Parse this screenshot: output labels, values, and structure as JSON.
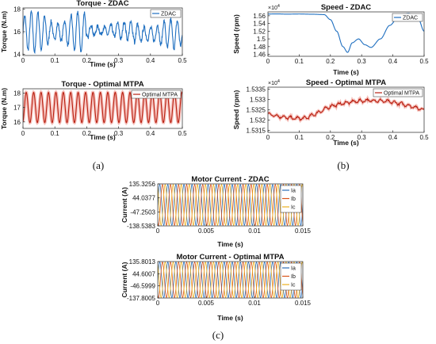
{
  "colors": {
    "blue": "#1f6fc0",
    "red": "#b81f10",
    "redband": "#f2a6a0",
    "ia": "#2c6fb8",
    "ib": "#d9541a",
    "ic": "#edb120"
  },
  "panels": {
    "a": "(a)",
    "b": "(b)",
    "c": "(c)"
  },
  "chart_data": [
    {
      "id": "torque_zdac",
      "type": "line",
      "title": "Torque - ZDAC",
      "xlabel": "Time (s)",
      "ylabel": "Torque (N.m)",
      "xlim": [
        0,
        0.5
      ],
      "ylim": [
        13.9,
        18.1
      ],
      "xticks": [
        "0",
        "0.1",
        "0.2",
        "0.3",
        "0.4",
        "0.5"
      ],
      "yticks": [
        "14",
        "16",
        "18"
      ],
      "legend": "top-right",
      "series": [
        {
          "name": "ZDAC",
          "color": "#1f6fc0"
        }
      ]
    },
    {
      "id": "torque_mtpa",
      "type": "line",
      "title": "Torque - Optimal MTPA",
      "xlabel": "Time (s)",
      "ylabel": "Torque (N.m)",
      "xlim": [
        0,
        0.5
      ],
      "ylim": [
        15.55,
        18.3
      ],
      "xticks": [
        "0",
        "0.1",
        "0.2",
        "0.3",
        "0.4",
        "0.5"
      ],
      "yticks": [
        "16",
        "17",
        "18"
      ],
      "legend": "top-right",
      "series": [
        {
          "name": "Optimal MTPA",
          "color": "#b81f10"
        }
      ]
    },
    {
      "id": "speed_zdac",
      "type": "line",
      "title": "Speed - ZDAC",
      "xlabel": "Time (s)",
      "ylabel": "Speed (rpm)",
      "exponent": "×10",
      "exponent_power": "4",
      "xlim": [
        0,
        0.5
      ],
      "ylim": [
        1.455,
        1.57
      ],
      "xticks": [
        "0",
        "0.1",
        "0.2",
        "0.3",
        "0.4",
        "0.5"
      ],
      "yticks": [
        "1.46",
        "1.48",
        "1.5",
        "1.52",
        "1.54",
        "1.56"
      ],
      "legend": "top-right",
      "series": [
        {
          "name": "ZDAC",
          "color": "#1f6fc0"
        }
      ]
    },
    {
      "id": "speed_mtpa",
      "type": "line",
      "title": "Speed - Optimal MTPA",
      "xlabel": "Time (s)",
      "ylabel": "Speed (rpm)",
      "exponent": "×10",
      "exponent_power": "4",
      "xlim": [
        0,
        0.5
      ],
      "ylim": [
        1.5314,
        1.5336
      ],
      "xticks": [
        "0",
        "0.1",
        "0.2",
        "0.3",
        "0.4",
        "0.5"
      ],
      "yticks": [
        "1.5315",
        "1.532",
        "1.5325",
        "1.533",
        "1.5335"
      ],
      "legend": "top-right",
      "series": [
        {
          "name": "Optimal MTPA",
          "color": "#b81f10"
        }
      ]
    },
    {
      "id": "current_zdac",
      "type": "line",
      "title": "Motor Current - ZDAC",
      "xlabel": "Time (s)",
      "ylabel": "Current (A)",
      "xlim": [
        0,
        0.015
      ],
      "ylim": [
        -138.5383,
        135.3256
      ],
      "xticks": [
        "0",
        "0.005",
        "0.01",
        "0.015"
      ],
      "yticks": [
        "135.3256",
        "44.0377",
        "-47.2503",
        "-138.5383"
      ],
      "legend": "top-right",
      "series": [
        {
          "name": "Ia",
          "color": "#2c6fb8"
        },
        {
          "name": "Ib",
          "color": "#d9541a"
        },
        {
          "name": "Ic",
          "color": "#edb120"
        }
      ]
    },
    {
      "id": "current_mtpa",
      "type": "line",
      "title": "Motor Current - Optimal MTPA",
      "xlabel": "Time (s)",
      "ylabel": "Current (A)",
      "xlim": [
        0,
        0.015
      ],
      "ylim": [
        -137.8005,
        135.8013
      ],
      "xticks": [
        "0",
        "0.005",
        "0.01",
        "0.015"
      ],
      "yticks": [
        "135.8013",
        "44.6007",
        "-46.5999",
        "-137.8005"
      ],
      "legend": "top-right",
      "series": [
        {
          "name": "Ia",
          "color": "#2c6fb8"
        },
        {
          "name": "Ib",
          "color": "#d9541a"
        },
        {
          "name": "Ic",
          "color": "#edb120"
        }
      ]
    }
  ]
}
